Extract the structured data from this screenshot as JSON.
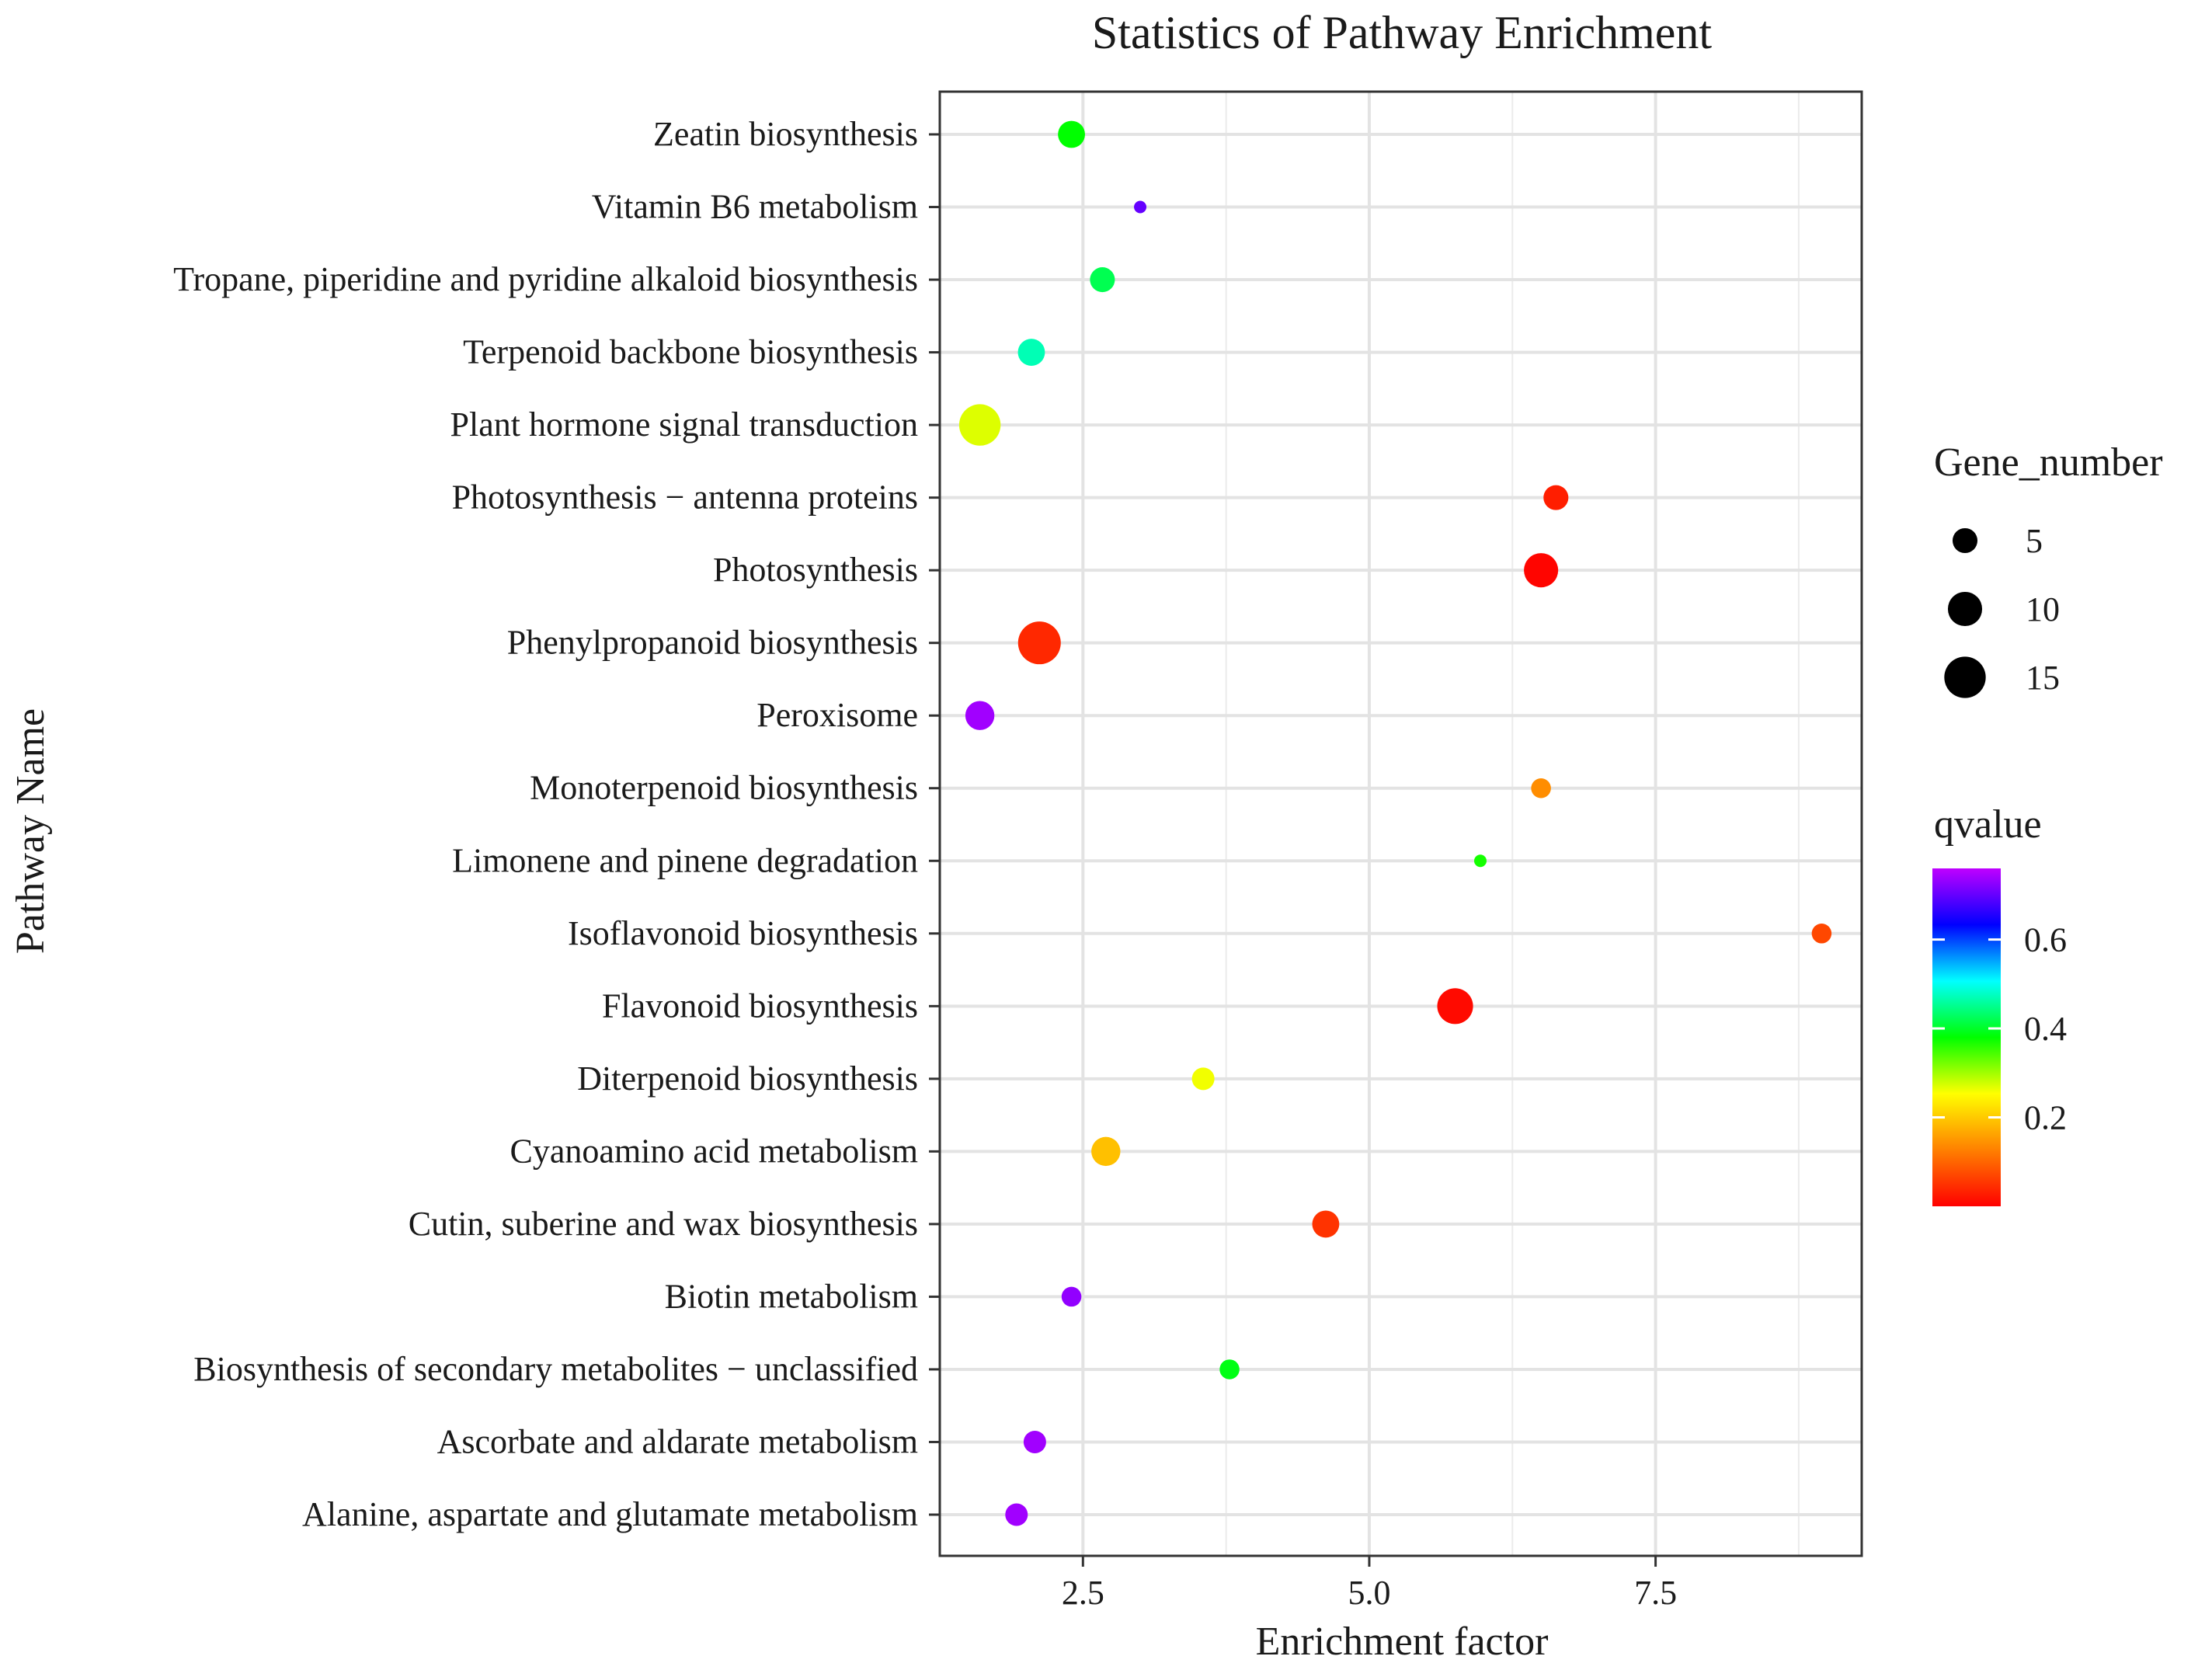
{
  "chart_data": {
    "type": "scatter",
    "title": "Statistics of Pathway Enrichment",
    "xlabel": "Enrichment factor",
    "ylabel": "Pathway Name",
    "xlim": [
      1.25,
      9.3
    ],
    "xticks": [
      {
        "value": 2.5,
        "label": "2.5"
      },
      {
        "value": 5.0,
        "label": "5.0"
      },
      {
        "value": 7.5,
        "label": "7.5"
      }
    ],
    "grid": true,
    "categories": [
      "Zeatin biosynthesis",
      "Vitamin B6 metabolism",
      "Tropane, piperidine and pyridine alkaloid biosynthesis",
      "Terpenoid backbone biosynthesis",
      "Plant hormone signal transduction",
      "Photosynthesis − antenna proteins",
      "Photosynthesis",
      "Phenylpropanoid biosynthesis",
      "Peroxisome",
      "Monoterpenoid biosynthesis",
      "Limonene and pinene degradation",
      "Isoflavonoid biosynthesis",
      "Flavonoid biosynthesis",
      "Diterpenoid biosynthesis",
      "Cyanoamino acid metabolism",
      "Cutin, suberine and wax biosynthesis",
      "Biotin metabolism",
      "Biosynthesis of secondary metabolites − unclassified",
      "Ascorbate and aldarate metabolism",
      "Alanine, aspartate and glutamate metabolism"
    ],
    "points": [
      {
        "pathway": "Zeatin biosynthesis",
        "enrichment_factor": 2.4,
        "gene_number": 6,
        "qvalue": 0.38
      },
      {
        "pathway": "Vitamin B6 metabolism",
        "enrichment_factor": 3.0,
        "gene_number": 1,
        "qvalue": 0.7
      },
      {
        "pathway": "Tropane, piperidine and pyridine alkaloid biosynthesis",
        "enrichment_factor": 2.67,
        "gene_number": 5,
        "qvalue": 0.42
      },
      {
        "pathway": "Terpenoid backbone biosynthesis",
        "enrichment_factor": 2.05,
        "gene_number": 6,
        "qvalue": 0.47
      },
      {
        "pathway": "Plant hormone signal transduction",
        "enrichment_factor": 1.6,
        "gene_number": 15,
        "qvalue": 0.27
      },
      {
        "pathway": "Photosynthesis − antenna proteins",
        "enrichment_factor": 6.63,
        "gene_number": 5,
        "qvalue": 0.03
      },
      {
        "pathway": "Photosynthesis",
        "enrichment_factor": 6.5,
        "gene_number": 10,
        "qvalue": 0.005
      },
      {
        "pathway": "Phenylpropanoid biosynthesis",
        "enrichment_factor": 2.12,
        "gene_number": 16,
        "qvalue": 0.04
      },
      {
        "pathway": "Peroxisome",
        "enrichment_factor": 1.6,
        "gene_number": 7,
        "qvalue": 0.74
      },
      {
        "pathway": "Monoterpenoid biosynthesis",
        "enrichment_factor": 6.5,
        "gene_number": 3,
        "qvalue": 0.14
      },
      {
        "pathway": "Limonene and pinene degradation",
        "enrichment_factor": 5.97,
        "gene_number": 1,
        "qvalue": 0.37
      },
      {
        "pathway": "Isoflavonoid biosynthesis",
        "enrichment_factor": 8.95,
        "gene_number": 3,
        "qvalue": 0.07
      },
      {
        "pathway": "Flavonoid biosynthesis",
        "enrichment_factor": 5.75,
        "gene_number": 11,
        "qvalue": 0.01
      },
      {
        "pathway": "Diterpenoid biosynthesis",
        "enrichment_factor": 3.55,
        "gene_number": 4,
        "qvalue": 0.26
      },
      {
        "pathway": "Cyanoamino acid metabolism",
        "enrichment_factor": 2.7,
        "gene_number": 7,
        "qvalue": 0.19
      },
      {
        "pathway": "Cutin, suberine and wax biosynthesis",
        "enrichment_factor": 4.62,
        "gene_number": 6,
        "qvalue": 0.05
      },
      {
        "pathway": "Biotin metabolism",
        "enrichment_factor": 2.4,
        "gene_number": 3,
        "qvalue": 0.73
      },
      {
        "pathway": "Biosynthesis of secondary metabolites − unclassified",
        "enrichment_factor": 3.78,
        "gene_number": 3,
        "qvalue": 0.39
      },
      {
        "pathway": "Ascorbate and aldarate metabolism",
        "enrichment_factor": 2.08,
        "gene_number": 4,
        "qvalue": 0.74
      },
      {
        "pathway": "Alanine, aspartate and glutamate metabolism",
        "enrichment_factor": 1.92,
        "gene_number": 4,
        "qvalue": 0.74
      }
    ],
    "size_legend": {
      "title": "Gene_number",
      "entries": [
        {
          "value": 5,
          "label": "5"
        },
        {
          "value": 10,
          "label": "10"
        },
        {
          "value": 15,
          "label": "15"
        }
      ]
    },
    "color_legend": {
      "title": "qvalue",
      "range": [
        0,
        0.76
      ],
      "ticks": [
        {
          "value": 0.2,
          "label": "0.2"
        },
        {
          "value": 0.4,
          "label": "0.4"
        },
        {
          "value": 0.6,
          "label": "0.6"
        }
      ],
      "colors": [
        "#ff0000",
        "#ff8000",
        "#ffff00",
        "#00ff00",
        "#00ffff",
        "#0000ff",
        "#bf00ff"
      ]
    }
  }
}
